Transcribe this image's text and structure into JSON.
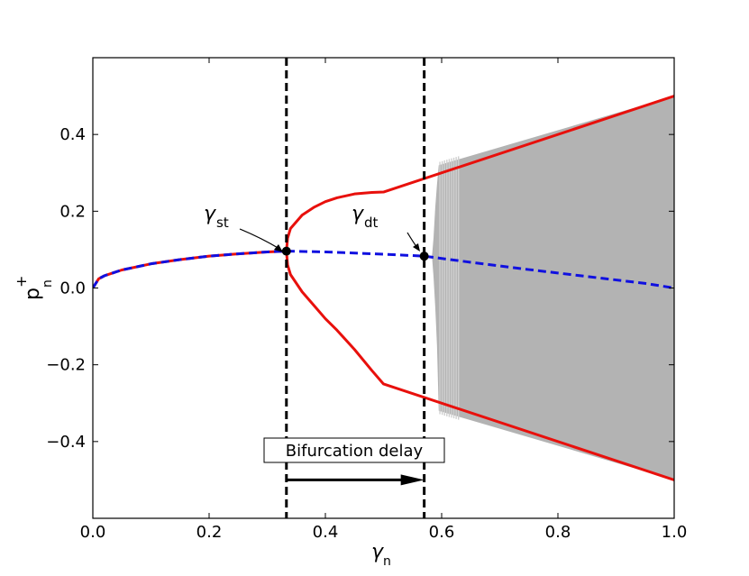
{
  "chart_data": {
    "type": "line",
    "title": "",
    "xlabel": "γ",
    "xlabel_sub": "n",
    "ylabel": "p",
    "ylabel_sub": "n",
    "ylabel_sup": "+",
    "xlim": [
      0.0,
      1.0
    ],
    "ylim": [
      -0.6,
      0.6
    ],
    "xticks": [
      0.0,
      0.2,
      0.4,
      0.6,
      0.8,
      1.0
    ],
    "xtick_labels": [
      "0.0",
      "0.2",
      "0.4",
      "0.6",
      "0.8",
      "1.0"
    ],
    "yticks": [
      -0.4,
      -0.2,
      0.0,
      0.2,
      0.4
    ],
    "ytick_labels": [
      "−0.4",
      "−0.2",
      "0.0",
      "0.2",
      "0.4"
    ],
    "grid": false,
    "legend": "none",
    "colors": {
      "stable_branch": "#e8100c",
      "unstable_branch": "#1010e0",
      "oscillation_band": "#b3b3b3",
      "threshold_lines": "#000000"
    },
    "series": [
      {
        "style": "solid",
        "color": "#e8100c",
        "points": [
          [
            0.0,
            0.0
          ],
          [
            0.01,
            0.024
          ],
          [
            0.02,
            0.032
          ],
          [
            0.05,
            0.047
          ],
          [
            0.1,
            0.063
          ],
          [
            0.15,
            0.074
          ],
          [
            0.2,
            0.083
          ],
          [
            0.25,
            0.089
          ],
          [
            0.3,
            0.094
          ],
          [
            0.333,
            0.096
          ]
        ]
      },
      {
        "style": "dashed",
        "color": "#1010e0",
        "points": [
          [
            0.0,
            0.0
          ],
          [
            0.01,
            0.024
          ],
          [
            0.02,
            0.032
          ],
          [
            0.05,
            0.047
          ],
          [
            0.1,
            0.063
          ],
          [
            0.15,
            0.074
          ],
          [
            0.2,
            0.083
          ],
          [
            0.25,
            0.089
          ],
          [
            0.3,
            0.094
          ],
          [
            0.333,
            0.096
          ],
          [
            0.4,
            0.094
          ],
          [
            0.5,
            0.088
          ],
          [
            0.57,
            0.083
          ],
          [
            0.65,
            0.067
          ],
          [
            0.75,
            0.048
          ],
          [
            0.85,
            0.03
          ],
          [
            0.95,
            0.012
          ],
          [
            1.0,
            0.0
          ]
        ]
      },
      {
        "style": "solid",
        "color": "#e8100c",
        "points": [
          [
            0.333,
            0.096
          ],
          [
            0.335,
            0.13
          ],
          [
            0.34,
            0.155
          ],
          [
            0.36,
            0.19
          ],
          [
            0.38,
            0.21
          ],
          [
            0.4,
            0.225
          ],
          [
            0.42,
            0.235
          ],
          [
            0.45,
            0.245
          ],
          [
            0.48,
            0.249
          ],
          [
            0.5,
            0.25
          ],
          [
            1.0,
            0.5
          ]
        ]
      },
      {
        "style": "solid",
        "color": "#e8100c",
        "points": [
          [
            0.333,
            0.096
          ],
          [
            0.335,
            0.06
          ],
          [
            0.34,
            0.035
          ],
          [
            0.36,
            -0.01
          ],
          [
            0.38,
            -0.045
          ],
          [
            0.4,
            -0.08
          ],
          [
            0.42,
            -0.11
          ],
          [
            0.45,
            -0.16
          ],
          [
            0.48,
            -0.215
          ],
          [
            0.5,
            -0.25
          ],
          [
            1.0,
            -0.5
          ]
        ]
      }
    ],
    "oscillation_band": {
      "start_x": 0.583,
      "upper": [
        [
          0.583,
          0.075
        ],
        [
          0.586,
          0.13
        ],
        [
          0.589,
          0.21
        ],
        [
          0.592,
          0.27
        ],
        [
          0.595,
          0.32
        ],
        [
          1.0,
          0.5
        ]
      ],
      "lower": [
        [
          0.583,
          0.09
        ],
        [
          0.586,
          0.03
        ],
        [
          0.589,
          -0.05
        ],
        [
          0.592,
          -0.15
        ],
        [
          0.595,
          -0.32
        ],
        [
          1.0,
          -0.5
        ]
      ]
    },
    "vertical_lines": [
      0.333,
      0.57
    ],
    "bifurcation_points": [
      [
        0.333,
        0.096
      ],
      [
        0.57,
        0.083
      ]
    ],
    "annotations": [
      {
        "symbol": "γ",
        "subscript": "st",
        "points_to": [
          0.333,
          0.096
        ]
      },
      {
        "symbol": "γ",
        "subscript": "dt",
        "points_to": [
          0.57,
          0.083
        ]
      }
    ],
    "delay_label": "Bifurcation delay",
    "delay_arrow": {
      "from_x": 0.333,
      "to_x": 0.57,
      "y": -0.5
    }
  }
}
